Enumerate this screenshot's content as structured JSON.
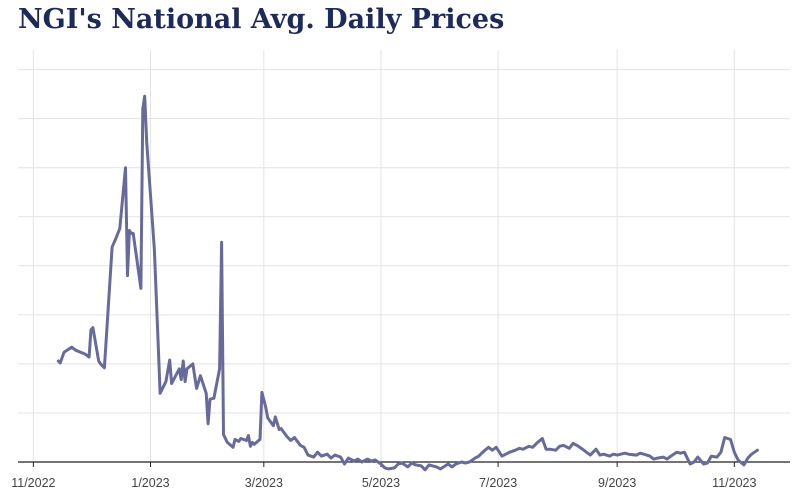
{
  "title": "NGI's National Avg. Daily Prices",
  "colors": {
    "line": "#676b9b",
    "grid": "#e3e3e3",
    "axis": "#222222",
    "title": "#1d2a5c"
  },
  "chart_data": {
    "type": "line",
    "title": "NGI's National Avg. Daily Prices",
    "xlabel": "",
    "ylabel": "",
    "x_tick_labels": [
      "11/2022",
      "1/2023",
      "3/2023",
      "5/2023",
      "7/2023",
      "9/2023",
      "11/2023"
    ],
    "x_tick_dates": [
      "2022-11-01",
      "2023-01-01",
      "2023-03-01",
      "2023-05-01",
      "2023-07-01",
      "2023-09-01",
      "2023-11-01"
    ],
    "xlim": [
      "2022-10-24",
      "2023-11-30"
    ],
    "ylim": [
      0,
      42
    ],
    "y_gridlines": [
      5,
      10,
      15,
      20,
      25,
      30,
      35,
      40
    ],
    "y_tick_labels_shown": false,
    "grid": true,
    "legend": "none",
    "series": [
      {
        "points": [
          [
            "2022-11-14",
            10.3
          ],
          [
            "2022-11-15",
            10.1
          ],
          [
            "2022-11-17",
            11.2
          ],
          [
            "2022-11-21",
            11.7
          ],
          [
            "2022-11-23",
            11.4
          ],
          [
            "2022-11-28",
            11.0
          ],
          [
            "2022-11-30",
            10.7
          ],
          [
            "2022-12-01",
            13.5
          ],
          [
            "2022-12-02",
            13.7
          ],
          [
            "2022-12-05",
            10.3
          ],
          [
            "2022-12-06",
            10.0
          ],
          [
            "2022-12-08",
            9.6
          ],
          [
            "2022-12-12",
            21.9
          ],
          [
            "2022-12-14",
            22.8
          ],
          [
            "2022-12-16",
            23.8
          ],
          [
            "2022-12-19",
            30.0
          ],
          [
            "2022-12-20",
            19.0
          ],
          [
            "2022-12-21",
            23.6
          ],
          [
            "2022-12-22",
            23.3
          ],
          [
            "2022-12-23",
            23.3
          ],
          [
            "2022-12-27",
            17.7
          ],
          [
            "2022-12-28",
            36.0
          ],
          [
            "2022-12-29",
            37.3
          ],
          [
            "2022-12-30",
            32.6
          ],
          [
            "2023-01-03",
            21.8
          ],
          [
            "2023-01-05",
            12.0
          ],
          [
            "2023-01-06",
            7.0
          ],
          [
            "2023-01-09",
            8.2
          ],
          [
            "2023-01-11",
            10.4
          ],
          [
            "2023-01-12",
            8.0
          ],
          [
            "2023-01-16",
            9.5
          ],
          [
            "2023-01-17",
            8.4
          ],
          [
            "2023-01-18",
            10.3
          ],
          [
            "2023-01-19",
            8.2
          ],
          [
            "2023-01-20",
            9.5
          ],
          [
            "2023-01-23",
            10.0
          ],
          [
            "2023-01-25",
            7.5
          ],
          [
            "2023-01-27",
            8.8
          ],
          [
            "2023-01-30",
            7.0
          ],
          [
            "2023-01-31",
            3.9
          ],
          [
            "2023-02-01",
            6.4
          ],
          [
            "2023-02-03",
            6.5
          ],
          [
            "2023-02-06",
            9.5
          ],
          [
            "2023-02-07",
            22.4
          ],
          [
            "2023-02-08",
            2.8
          ],
          [
            "2023-02-10",
            2.0
          ],
          [
            "2023-02-13",
            1.5
          ],
          [
            "2023-02-14",
            2.3
          ],
          [
            "2023-02-16",
            2.1
          ],
          [
            "2023-02-17",
            2.4
          ],
          [
            "2023-02-20",
            2.2
          ],
          [
            "2023-02-21",
            2.7
          ],
          [
            "2023-02-22",
            1.6
          ],
          [
            "2023-02-23",
            2.0
          ],
          [
            "2023-02-24",
            1.8
          ],
          [
            "2023-02-27",
            2.3
          ],
          [
            "2023-02-28",
            7.1
          ],
          [
            "2023-03-02",
            5.6
          ],
          [
            "2023-03-03",
            4.5
          ],
          [
            "2023-03-06",
            3.7
          ],
          [
            "2023-03-07",
            4.6
          ],
          [
            "2023-03-09",
            3.3
          ],
          [
            "2023-03-10",
            3.4
          ],
          [
            "2023-03-13",
            2.6
          ],
          [
            "2023-03-15",
            2.2
          ],
          [
            "2023-03-17",
            2.5
          ],
          [
            "2023-03-20",
            1.7
          ],
          [
            "2023-03-22",
            1.5
          ],
          [
            "2023-03-24",
            0.7
          ],
          [
            "2023-03-27",
            0.5
          ],
          [
            "2023-03-29",
            1.0
          ],
          [
            "2023-03-31",
            0.6
          ],
          [
            "2023-04-03",
            0.8
          ],
          [
            "2023-04-05",
            0.4
          ],
          [
            "2023-04-07",
            0.7
          ],
          [
            "2023-04-10",
            0.5
          ],
          [
            "2023-04-12",
            -0.2
          ],
          [
            "2023-04-14",
            0.4
          ],
          [
            "2023-04-17",
            0.1
          ],
          [
            "2023-04-19",
            0.3
          ],
          [
            "2023-04-21",
            0.0
          ],
          [
            "2023-04-24",
            0.3
          ],
          [
            "2023-04-26",
            0.1
          ],
          [
            "2023-04-28",
            0.2
          ],
          [
            "2023-05-01",
            -0.2
          ],
          [
            "2023-05-03",
            -0.6
          ],
          [
            "2023-05-05",
            -0.7
          ],
          [
            "2023-05-08",
            -0.6
          ],
          [
            "2023-05-10",
            -0.2
          ],
          [
            "2023-05-12",
            -0.1
          ],
          [
            "2023-05-15",
            -0.5
          ],
          [
            "2023-05-17",
            -0.1
          ],
          [
            "2023-05-19",
            -0.3
          ],
          [
            "2023-05-22",
            -0.4
          ],
          [
            "2023-05-24",
            -0.8
          ],
          [
            "2023-05-26",
            -0.3
          ],
          [
            "2023-05-30",
            -0.5
          ],
          [
            "2023-06-01",
            -0.7
          ],
          [
            "2023-06-05",
            -0.2
          ],
          [
            "2023-06-07",
            -0.5
          ],
          [
            "2023-06-09",
            -0.2
          ],
          [
            "2023-06-12",
            0.0
          ],
          [
            "2023-06-14",
            -0.1
          ],
          [
            "2023-06-16",
            0.0
          ],
          [
            "2023-06-19",
            0.4
          ],
          [
            "2023-06-21",
            0.6
          ],
          [
            "2023-06-23",
            1.0
          ],
          [
            "2023-06-26",
            1.5
          ],
          [
            "2023-06-28",
            1.2
          ],
          [
            "2023-06-30",
            1.5
          ],
          [
            "2023-07-03",
            0.6
          ],
          [
            "2023-07-05",
            0.8
          ],
          [
            "2023-07-07",
            1.0
          ],
          [
            "2023-07-10",
            1.2
          ],
          [
            "2023-07-12",
            1.4
          ],
          [
            "2023-07-14",
            1.3
          ],
          [
            "2023-07-17",
            1.6
          ],
          [
            "2023-07-19",
            1.5
          ],
          [
            "2023-07-21",
            1.9
          ],
          [
            "2023-07-24",
            2.4
          ],
          [
            "2023-07-26",
            1.3
          ],
          [
            "2023-07-28",
            1.3
          ],
          [
            "2023-07-31",
            1.2
          ],
          [
            "2023-08-02",
            1.6
          ],
          [
            "2023-08-04",
            1.7
          ],
          [
            "2023-08-07",
            1.4
          ],
          [
            "2023-08-09",
            1.9
          ],
          [
            "2023-08-11",
            1.7
          ],
          [
            "2023-08-14",
            1.3
          ],
          [
            "2023-08-16",
            1.0
          ],
          [
            "2023-08-18",
            0.7
          ],
          [
            "2023-08-21",
            1.3
          ],
          [
            "2023-08-23",
            0.7
          ],
          [
            "2023-08-25",
            0.8
          ],
          [
            "2023-08-28",
            0.6
          ],
          [
            "2023-08-30",
            0.8
          ],
          [
            "2023-09-01",
            0.7
          ],
          [
            "2023-09-05",
            0.9
          ],
          [
            "2023-09-07",
            0.8
          ],
          [
            "2023-09-11",
            0.7
          ],
          [
            "2023-09-13",
            0.9
          ],
          [
            "2023-09-15",
            0.8
          ],
          [
            "2023-09-18",
            0.6
          ],
          [
            "2023-09-20",
            0.3
          ],
          [
            "2023-09-22",
            0.4
          ],
          [
            "2023-09-25",
            0.5
          ],
          [
            "2023-09-27",
            0.3
          ],
          [
            "2023-09-29",
            0.6
          ],
          [
            "2023-10-02",
            1.0
          ],
          [
            "2023-10-04",
            0.9
          ],
          [
            "2023-10-06",
            1.0
          ],
          [
            "2023-10-09",
            -0.2
          ],
          [
            "2023-10-11",
            0.0
          ],
          [
            "2023-10-13",
            0.5
          ],
          [
            "2023-10-16",
            -0.2
          ],
          [
            "2023-10-18",
            -0.1
          ],
          [
            "2023-10-20",
            0.6
          ],
          [
            "2023-10-23",
            0.5
          ],
          [
            "2023-10-25",
            1.0
          ],
          [
            "2023-10-27",
            2.5
          ],
          [
            "2023-10-30",
            2.3
          ],
          [
            "2023-11-01",
            1.0
          ],
          [
            "2023-11-03",
            0.2
          ],
          [
            "2023-11-06",
            -0.3
          ],
          [
            "2023-11-08",
            0.4
          ],
          [
            "2023-11-10",
            0.8
          ],
          [
            "2023-11-13",
            1.2
          ]
        ]
      }
    ]
  }
}
